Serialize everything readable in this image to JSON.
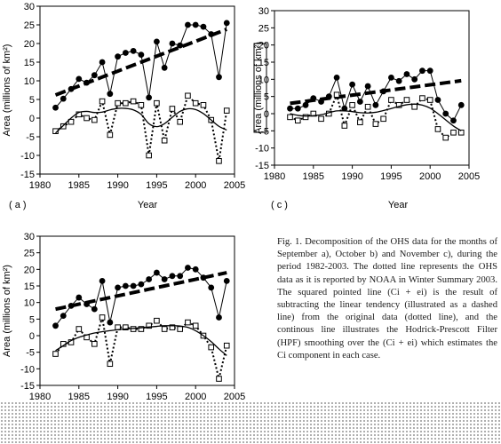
{
  "caption": "Fig. 1. Decomposition of the OHS data for the months of September a), October b) and November c), during the period 1982-2003. The dotted line represents the OHS data as it is reported by NOAA in Winter Summary 2003. The squared pointed line (Ci + ei) is the result of subtracting the linear tendency (illustrated as a dashed line) from the original data (dotted line), and the continous line illustrates the Hodrick-Prescott Filter (HPF) smoothing over the (Ci + ei) which estimates the Ci component in each case.",
  "chart_data": [
    {
      "type": "line",
      "panel_label": "( a )",
      "xlabel": "Year",
      "ylabel": "Area (millions of km²)",
      "xlim": [
        1980,
        2005
      ],
      "ylim": [
        -15,
        30
      ],
      "xticks": [
        1980,
        1985,
        1990,
        1995,
        2000,
        2005
      ],
      "yticks": [
        -15,
        -10,
        -5,
        0,
        5,
        10,
        15,
        20,
        25,
        30
      ],
      "x": [
        1982,
        1983,
        1984,
        1985,
        1986,
        1987,
        1988,
        1989,
        1990,
        1991,
        1992,
        1993,
        1994,
        1995,
        1996,
        1997,
        1998,
        1999,
        2000,
        2001,
        2002,
        2003,
        2004
      ],
      "series": [
        {
          "style": "filled-circles-solid",
          "values": [
            2.8,
            5.2,
            7.8,
            10.5,
            9.5,
            11.5,
            15,
            6.5,
            16.5,
            17.5,
            18,
            17,
            5.5,
            20.5,
            13.5,
            20,
            19.5,
            25,
            25,
            24.5,
            22.5,
            11,
            25.5
          ]
        },
        {
          "style": "thick-dashed",
          "values": [
            6.2,
            7.0,
            7.8,
            8.6,
            9.4,
            10.2,
            11.0,
            11.8,
            12.6,
            13.4,
            14.2,
            15.0,
            15.8,
            16.6,
            17.4,
            18.2,
            19.0,
            19.8,
            20.6,
            21.4,
            22.2,
            23.0,
            23.8
          ]
        },
        {
          "style": "open-squares-dotted",
          "values": [
            -3.5,
            -2.2,
            -1.0,
            1.0,
            0.0,
            -0.5,
            4.5,
            -4.5,
            4.0,
            4.0,
            4.5,
            3.5,
            -10.0,
            4.0,
            -6.0,
            2.5,
            -1.0,
            6.0,
            4.0,
            3.5,
            -0.5,
            -11.5,
            2.0
          ]
        },
        {
          "style": "smooth-solid",
          "values": [
            -4.0,
            -2.0,
            0.0,
            1.5,
            1.8,
            1.5,
            1.6,
            2.2,
            2.6,
            2.6,
            2.2,
            1.0,
            -1.5,
            -2.3,
            -1.5,
            0.2,
            1.8,
            2.5,
            2.3,
            1.2,
            -0.5,
            -2.2,
            -3.2
          ]
        }
      ]
    },
    {
      "type": "line",
      "panel_label": "( c )",
      "xlabel": "Year",
      "ylabel": "Area (millions of km²)",
      "xlim": [
        1980,
        2005
      ],
      "ylim": [
        -15,
        30
      ],
      "xticks": [
        1980,
        1985,
        1990,
        1995,
        2000,
        2005
      ],
      "yticks": [
        -15,
        -10,
        -5,
        0,
        5,
        10,
        15,
        20,
        25,
        30
      ],
      "x": [
        1982,
        1983,
        1984,
        1985,
        1986,
        1987,
        1988,
        1989,
        1990,
        1991,
        1992,
        1993,
        1994,
        1995,
        1996,
        1997,
        1998,
        1999,
        2000,
        2001,
        2002,
        2003,
        2004
      ],
      "series": [
        {
          "style": "filled-circles-solid",
          "values": [
            1.5,
            1.5,
            2.5,
            4.5,
            3.5,
            5.0,
            10.5,
            1.5,
            8.5,
            3.5,
            8.0,
            2.5,
            6.5,
            10.5,
            9.5,
            11.5,
            10.0,
            12.5,
            12.5,
            4.0,
            0.0,
            -2.0,
            2.5
          ]
        },
        {
          "style": "thick-dashed",
          "values": [
            3.0,
            3.3,
            3.6,
            3.9,
            4.2,
            4.5,
            4.8,
            5.1,
            5.4,
            5.7,
            6.0,
            6.3,
            6.6,
            6.9,
            7.2,
            7.5,
            7.8,
            8.1,
            8.4,
            8.7,
            9.0,
            9.3,
            9.6
          ]
        },
        {
          "style": "open-squares-dotted",
          "values": [
            -1.0,
            -2.0,
            -1.0,
            0.0,
            -1.5,
            0.0,
            5.5,
            -3.5,
            2.5,
            -2.5,
            2.0,
            -3.0,
            -1.5,
            4.0,
            2.5,
            4.0,
            2.0,
            4.5,
            4.0,
            -4.5,
            -7.0,
            -5.5,
            -5.5
          ]
        },
        {
          "style": "smooth-solid",
          "values": [
            0.0,
            -0.5,
            -0.7,
            -0.6,
            -0.3,
            0.3,
            0.8,
            0.8,
            0.6,
            0.3,
            0.2,
            0.4,
            0.9,
            1.5,
            2.1,
            2.6,
            2.8,
            2.5,
            1.6,
            0.0,
            -1.8,
            -3.6,
            -5.0
          ]
        }
      ]
    },
    {
      "type": "line",
      "panel_label": "",
      "xlabel": "",
      "ylabel": "Area (millions of km²)",
      "xlim": [
        1980,
        2005
      ],
      "ylim": [
        -15,
        30
      ],
      "xticks": [
        1980,
        1985,
        1990,
        1995,
        2000,
        2005
      ],
      "yticks": [
        -15,
        -10,
        -5,
        0,
        5,
        10,
        15,
        20,
        25,
        30
      ],
      "x": [
        1982,
        1983,
        1984,
        1985,
        1986,
        1987,
        1988,
        1989,
        1990,
        1991,
        1992,
        1993,
        1994,
        1995,
        1996,
        1997,
        1998,
        1999,
        2000,
        2001,
        2002,
        2003,
        2004
      ],
      "series": [
        {
          "style": "filled-circles-solid",
          "values": [
            3.0,
            6.0,
            9.0,
            11.5,
            9.5,
            8.0,
            16.5,
            4.0,
            14.5,
            15.0,
            15.0,
            15.5,
            17.0,
            19.0,
            17.0,
            18.0,
            18.0,
            20.5,
            20.0,
            17.5,
            14.5,
            5.5,
            16.5
          ]
        },
        {
          "style": "thick-dashed",
          "values": [
            8.0,
            8.5,
            9.0,
            9.5,
            10.0,
            10.5,
            11.0,
            11.5,
            12.0,
            12.5,
            13.0,
            13.5,
            14.0,
            14.5,
            15.0,
            15.5,
            16.0,
            16.5,
            17.0,
            17.5,
            18.0,
            18.5,
            19.0
          ]
        },
        {
          "style": "open-squares-dotted",
          "values": [
            -5.5,
            -2.5,
            -2.0,
            2.0,
            -0.5,
            -2.5,
            5.5,
            -8.5,
            2.5,
            2.5,
            2.0,
            2.0,
            3.0,
            4.5,
            2.0,
            2.5,
            2.0,
            4.0,
            3.0,
            0.0,
            -3.5,
            -13.0,
            -3.0
          ]
        },
        {
          "style": "smooth-solid",
          "values": [
            -4.5,
            -3.0,
            -1.5,
            -0.5,
            0.2,
            0.8,
            1.2,
            1.5,
            1.8,
            2.0,
            2.2,
            2.4,
            2.6,
            2.8,
            3.0,
            3.0,
            2.9,
            2.5,
            1.5,
            0.0,
            -1.8,
            -4.0,
            -6.0
          ]
        }
      ]
    }
  ]
}
